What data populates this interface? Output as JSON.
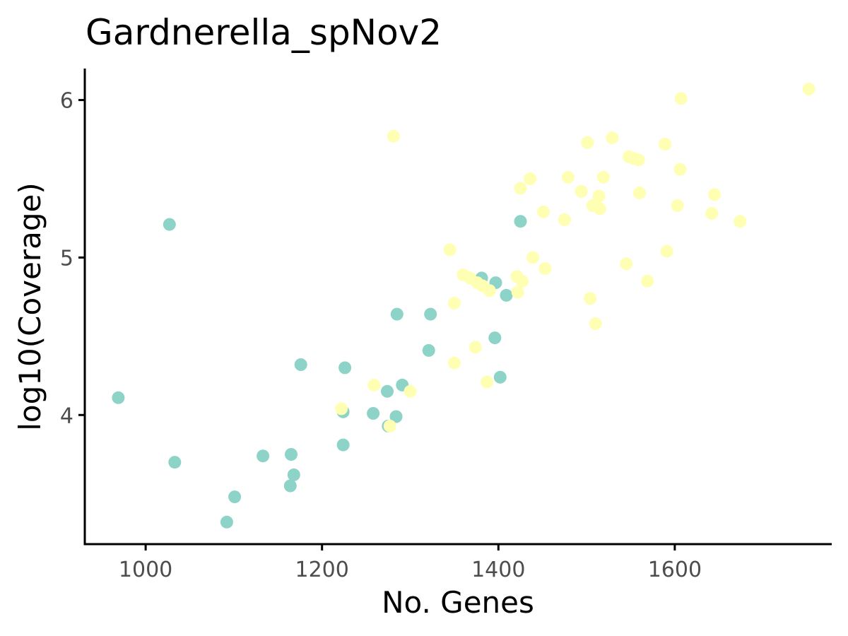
{
  "chart_data": {
    "type": "scatter",
    "title": "Gardnerella_spNov2",
    "xlabel": "No. Genes",
    "ylabel": "log10(Coverage)",
    "xlim": [
      931,
      1778
    ],
    "ylim": [
      3.18,
      6.2
    ],
    "xticks": [
      1000,
      1200,
      1400,
      1600
    ],
    "yticks": [
      4,
      5,
      6
    ],
    "grid": false,
    "legend": "none",
    "series": [
      {
        "color": "#8dd3c7",
        "points": [
          {
            "x": 969,
            "y": 4.11
          },
          {
            "x": 1027,
            "y": 5.21
          },
          {
            "x": 1033,
            "y": 3.7
          },
          {
            "x": 1092,
            "y": 3.32
          },
          {
            "x": 1101,
            "y": 3.48
          },
          {
            "x": 1133,
            "y": 3.74
          },
          {
            "x": 1164,
            "y": 3.55
          },
          {
            "x": 1165,
            "y": 3.75
          },
          {
            "x": 1168,
            "y": 3.62
          },
          {
            "x": 1176,
            "y": 4.32
          },
          {
            "x": 1224,
            "y": 3.81
          },
          {
            "x": 1224,
            "y": 4.02
          },
          {
            "x": 1226,
            "y": 4.3
          },
          {
            "x": 1258,
            "y": 4.01
          },
          {
            "x": 1274,
            "y": 4.15
          },
          {
            "x": 1275,
            "y": 3.93
          },
          {
            "x": 1284,
            "y": 3.99
          },
          {
            "x": 1285,
            "y": 4.64
          },
          {
            "x": 1291,
            "y": 4.19
          },
          {
            "x": 1321,
            "y": 4.41
          },
          {
            "x": 1323,
            "y": 4.64
          },
          {
            "x": 1381,
            "y": 4.87
          },
          {
            "x": 1396,
            "y": 4.49
          },
          {
            "x": 1397,
            "y": 4.84
          },
          {
            "x": 1402,
            "y": 4.24
          },
          {
            "x": 1409,
            "y": 4.76
          },
          {
            "x": 1425,
            "y": 5.23
          }
        ]
      },
      {
        "color": "#ffffb3",
        "points": [
          {
            "x": 1222,
            "y": 4.04
          },
          {
            "x": 1259,
            "y": 4.19
          },
          {
            "x": 1277,
            "y": 3.93
          },
          {
            "x": 1281,
            "y": 5.77
          },
          {
            "x": 1300,
            "y": 4.15
          },
          {
            "x": 1345,
            "y": 5.05
          },
          {
            "x": 1350,
            "y": 4.71
          },
          {
            "x": 1350,
            "y": 4.33
          },
          {
            "x": 1360,
            "y": 4.89
          },
          {
            "x": 1368,
            "y": 4.87
          },
          {
            "x": 1374,
            "y": 4.43
          },
          {
            "x": 1376,
            "y": 4.84
          },
          {
            "x": 1382,
            "y": 4.82
          },
          {
            "x": 1387,
            "y": 4.21
          },
          {
            "x": 1390,
            "y": 4.79
          },
          {
            "x": 1421,
            "y": 4.88
          },
          {
            "x": 1422,
            "y": 4.78
          },
          {
            "x": 1425,
            "y": 5.44
          },
          {
            "x": 1427,
            "y": 4.85
          },
          {
            "x": 1436,
            "y": 5.5
          },
          {
            "x": 1439,
            "y": 5.0
          },
          {
            "x": 1451,
            "y": 5.29
          },
          {
            "x": 1453,
            "y": 4.93
          },
          {
            "x": 1475,
            "y": 5.24
          },
          {
            "x": 1479,
            "y": 5.51
          },
          {
            "x": 1494,
            "y": 5.42
          },
          {
            "x": 1501,
            "y": 5.73
          },
          {
            "x": 1504,
            "y": 4.74
          },
          {
            "x": 1507,
            "y": 5.33
          },
          {
            "x": 1510,
            "y": 4.58
          },
          {
            "x": 1514,
            "y": 5.39
          },
          {
            "x": 1515,
            "y": 5.31
          },
          {
            "x": 1519,
            "y": 5.51
          },
          {
            "x": 1529,
            "y": 5.76
          },
          {
            "x": 1545,
            "y": 4.96
          },
          {
            "x": 1548,
            "y": 5.64
          },
          {
            "x": 1553,
            "y": 5.63
          },
          {
            "x": 1559,
            "y": 5.62
          },
          {
            "x": 1560,
            "y": 5.41
          },
          {
            "x": 1569,
            "y": 4.85
          },
          {
            "x": 1589,
            "y": 5.72
          },
          {
            "x": 1591,
            "y": 5.04
          },
          {
            "x": 1603,
            "y": 5.33
          },
          {
            "x": 1606,
            "y": 5.56
          },
          {
            "x": 1607,
            "y": 6.01
          },
          {
            "x": 1642,
            "y": 5.28
          },
          {
            "x": 1645,
            "y": 5.4
          },
          {
            "x": 1674,
            "y": 5.23
          },
          {
            "x": 1752,
            "y": 6.07
          }
        ]
      }
    ]
  }
}
